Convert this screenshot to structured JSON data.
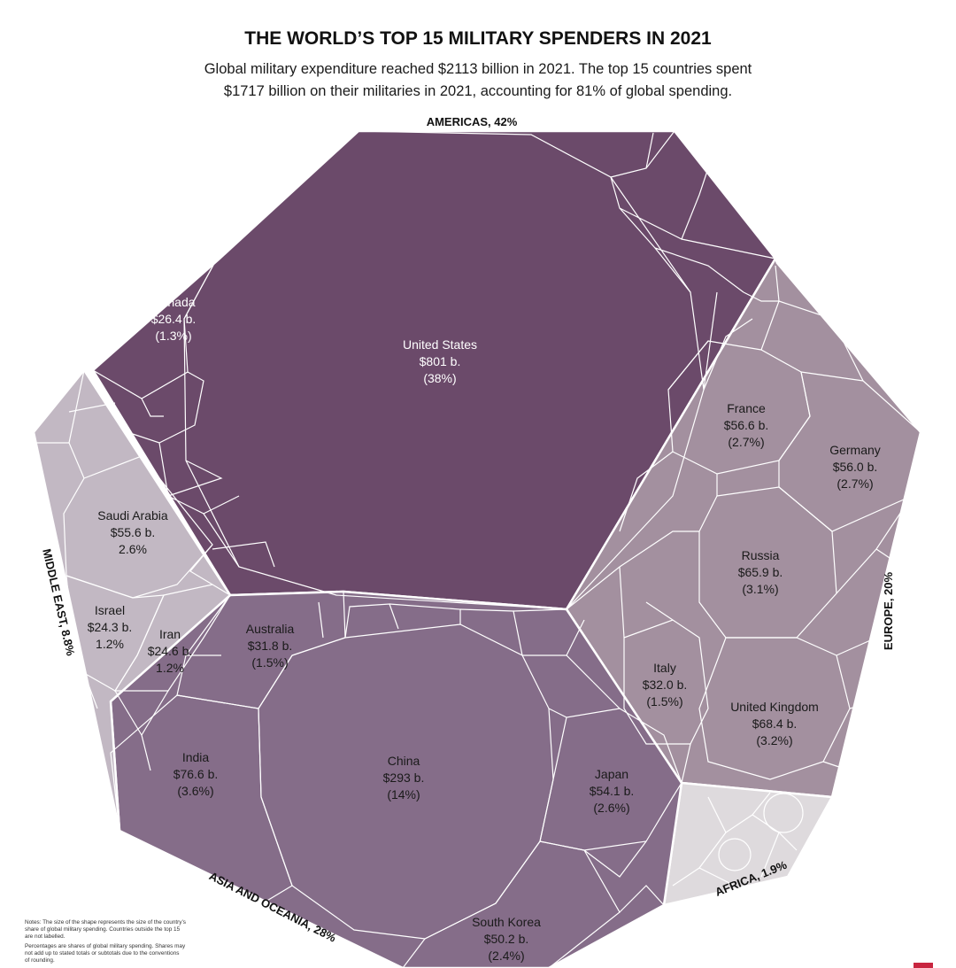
{
  "chart_data": {
    "type": "voronoi-treemap",
    "title": "THE WORLD’S TOP 15 MILITARY SPENDERS IN 2021",
    "subtitle_lines": [
      "Global military expenditure reached $2113 billion in 2021. The top 15 countries spent",
      "$1717 billion on their militaries in 2021, accounting for 81% of global spending."
    ],
    "colors": {
      "americas": "#6b4a6a",
      "asia": "#856d89",
      "europe": "#a3909f",
      "middle_east": "#c2b8c3",
      "africa": "#dedadd"
    },
    "regions": [
      {
        "id": "americas",
        "label": "AMERICAS, 42%"
      },
      {
        "id": "europe",
        "label": "EUROPE, 20%"
      },
      {
        "id": "africa",
        "label": "AFRICA, 1.9%"
      },
      {
        "id": "asia",
        "label": "ASIA AND OCEANIA, 28%"
      },
      {
        "id": "middle_east",
        "label": "MIDDLE EAST, 8.8%"
      }
    ],
    "countries": [
      {
        "region": "americas",
        "name": "United States",
        "value": "$801 b.",
        "share": "(38%)"
      },
      {
        "region": "americas",
        "name": "Canada",
        "value": "$26.4 b.",
        "share": "(1.3%)"
      },
      {
        "region": "europe",
        "name": "France",
        "value": "$56.6 b.",
        "share": "(2.7%)"
      },
      {
        "region": "europe",
        "name": "Germany",
        "value": "$56.0 b.",
        "share": "(2.7%)"
      },
      {
        "region": "europe",
        "name": "Russia",
        "value": "$65.9 b.",
        "share": "(3.1%)"
      },
      {
        "region": "europe",
        "name": "Italy",
        "value": "$32.0 b.",
        "share": "(1.5%)"
      },
      {
        "region": "europe",
        "name": "United Kingdom",
        "value": "$68.4 b.",
        "share": "(3.2%)"
      },
      {
        "region": "asia",
        "name": "China",
        "value": "$293 b.",
        "share": "(14%)"
      },
      {
        "region": "asia",
        "name": "India",
        "value": "$76.6 b.",
        "share": "(3.6%)"
      },
      {
        "region": "asia",
        "name": "Japan",
        "value": "$54.1 b.",
        "share": "(2.6%)"
      },
      {
        "region": "asia",
        "name": "South Korea",
        "value": "$50.2 b.",
        "share": "(2.4%)"
      },
      {
        "region": "asia",
        "name": "Australia",
        "value": "$31.8 b.",
        "share": "(1.5%)"
      },
      {
        "region": "middle_east",
        "name": "Saudi Arabia",
        "value": "$55.6 b.",
        "share": "2.6%"
      },
      {
        "region": "middle_east",
        "name": "Israel",
        "value": "$24.3 b.",
        "share": "1.2%"
      },
      {
        "region": "middle_east",
        "name": "Iran",
        "value": "$24.6 b.",
        "share": "1.2%"
      }
    ],
    "notes": [
      "Notes: The size of the shape represents the size of the country’s",
      "share of global military spending. Countries outside the top 15",
      "are not labelled.",
      "Percentages are shares of global military spending. Shares may",
      "not add up to stated totals or subtotals due to the conventions",
      "of rounding."
    ]
  }
}
